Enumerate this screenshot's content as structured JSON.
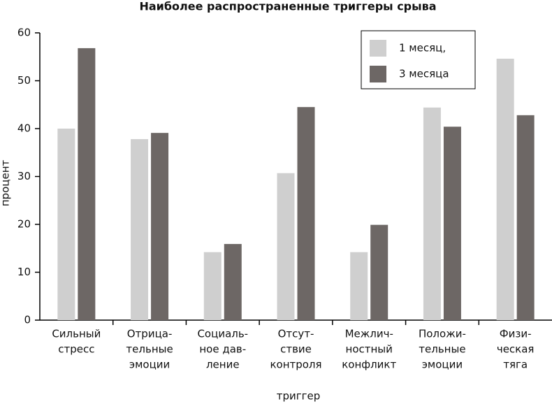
{
  "chart_data": {
    "type": "bar",
    "title": "Наиболее распространенные триггеры срыва",
    "x_label": "триггер",
    "y_label": "процент",
    "categories": [
      [
        "Сильный",
        "стресс"
      ],
      [
        "Отрица-",
        "тельные",
        "эмоции"
      ],
      [
        "Социаль-",
        "ное дав-",
        "ление"
      ],
      [
        "Отсут-",
        "ствие",
        "контроля"
      ],
      [
        "Межлич-",
        "ностный",
        "конфликт"
      ],
      [
        "Положи-",
        "тельные",
        "эмоции"
      ],
      [
        "Физи-",
        "ческая",
        "тяга"
      ]
    ],
    "series": [
      {
        "name": "1 месяц,",
        "color": "#cfcfcf",
        "values": [
          40,
          37.8,
          14.2,
          30.7,
          14.2,
          44.4,
          54.6
        ]
      },
      {
        "name": "3 месяца",
        "color": "#6d6765",
        "values": [
          56.8,
          39.1,
          15.9,
          44.5,
          19.9,
          40.4,
          42.8
        ]
      }
    ],
    "ylim": [
      0,
      60
    ],
    "yticks": [
      0,
      10,
      20,
      30,
      40,
      50,
      60
    ],
    "grid": false,
    "legend": "upper right"
  }
}
